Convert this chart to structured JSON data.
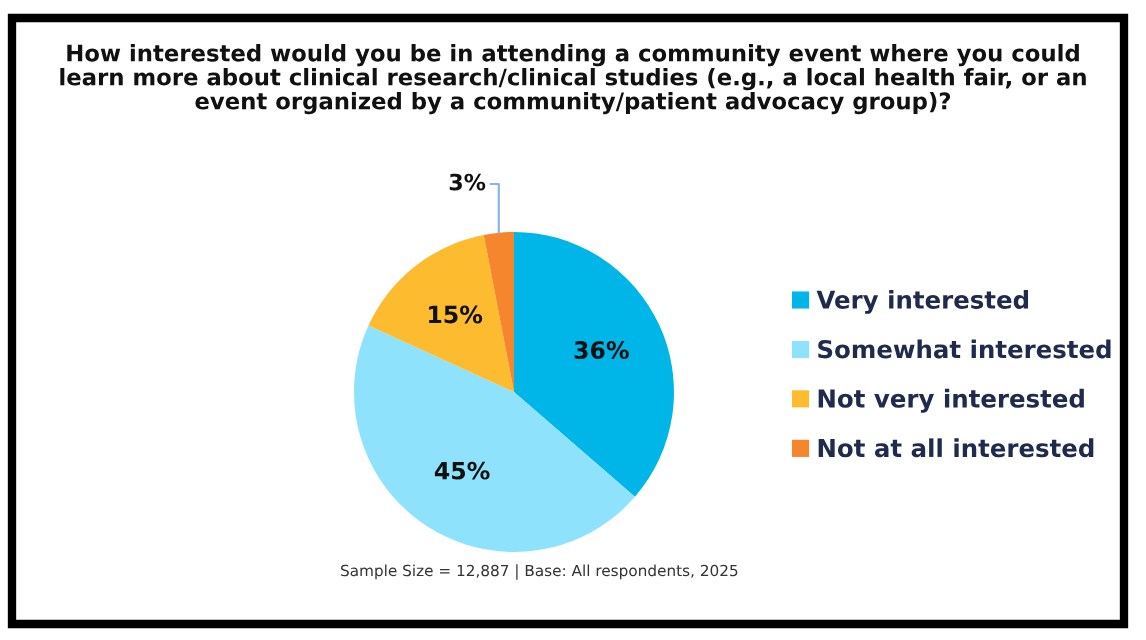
{
  "chart_data": {
    "type": "pie",
    "title": "How interested would you be in attending a community event where you could\nlearn more about clinical research/clinical studies (e.g., a local health fair, or an\nevent organized by a community/patient advocacy group)?",
    "categories": [
      "Very interested",
      "Somewhat interested",
      "Not very interested",
      "Not at all interested"
    ],
    "values": [
      36,
      45,
      15,
      3
    ],
    "colors": [
      "#00b5e8",
      "#8ee2fb",
      "#fdbb2f",
      "#f5862e"
    ],
    "value_labels": [
      "36%",
      "45%",
      "15%",
      "3%"
    ],
    "legend": "right",
    "annotations": [
      "Sample Size = 12,887 | Base: All respondents, 2025"
    ]
  }
}
